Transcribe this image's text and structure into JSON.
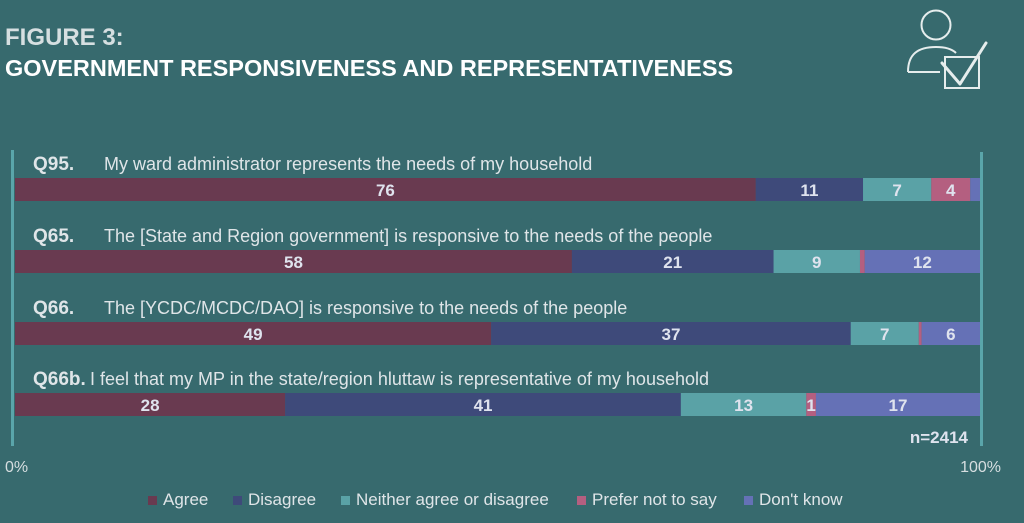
{
  "header": {
    "figure_number": "FIGURE 3:",
    "title": "GOVERNMENT RESPONSIVENESS AND REPRESENTATIVENESS",
    "icon": "user-checkbox-icon"
  },
  "colors": {
    "background": "#376a6e",
    "axis": "#5aa5aa",
    "agree": "#693a50",
    "disagree": "#3e4a7a",
    "neither": "#5aa2a6",
    "prefer": "#b45f80",
    "dontknow": "#6571b6"
  },
  "chart_data": {
    "type": "bar",
    "orientation": "horizontal",
    "stacked": true,
    "title": "GOVERNMENT RESPONSIVENESS AND REPRESENTATIVENESS",
    "xlabel": "",
    "ylabel": "",
    "xlim": [
      0,
      100
    ],
    "x_tick_labels": [
      "0%",
      "100%"
    ],
    "sample_note": "n=2414",
    "legend_position": "bottom",
    "legend": [
      "Agree",
      "Disagree",
      "Neither agree or disagree",
      "Prefer not to say",
      "Don't know"
    ],
    "series_keys": [
      "agree",
      "disagree",
      "neither",
      "prefer",
      "dontknow"
    ],
    "categories": [
      {
        "id": "Q95.",
        "text": "My ward administrator represents the needs of my household"
      },
      {
        "id": "Q65.",
        "text": "The [State and Region government] is responsive to the needs of the people"
      },
      {
        "id": "Q66.",
        "text": "The [YCDC/MCDC/DAO] is responsive to the needs of the people"
      },
      {
        "id": "Q66b.",
        "text": "I feel that my MP in the state/region hluttaw is representative of my household"
      }
    ],
    "series": [
      {
        "name": "Agree",
        "values": [
          76,
          58,
          49,
          28
        ],
        "labels": [
          "76",
          "58",
          "49",
          "28"
        ]
      },
      {
        "name": "Disagree",
        "values": [
          11,
          21,
          37,
          41
        ],
        "labels": [
          "11",
          "21",
          "37",
          "41"
        ]
      },
      {
        "name": "Neither agree or disagree",
        "values": [
          7,
          9,
          7,
          13
        ],
        "labels": [
          "7",
          "9",
          "7",
          "13"
        ]
      },
      {
        "name": "Prefer not to say",
        "values": [
          4,
          0.5,
          0.3,
          1
        ],
        "labels": [
          "4",
          "",
          "",
          "1"
        ]
      },
      {
        "name": "Don't know",
        "values": [
          1,
          12,
          6,
          17
        ],
        "labels": [
          "",
          "12",
          "6",
          "17"
        ]
      }
    ]
  }
}
